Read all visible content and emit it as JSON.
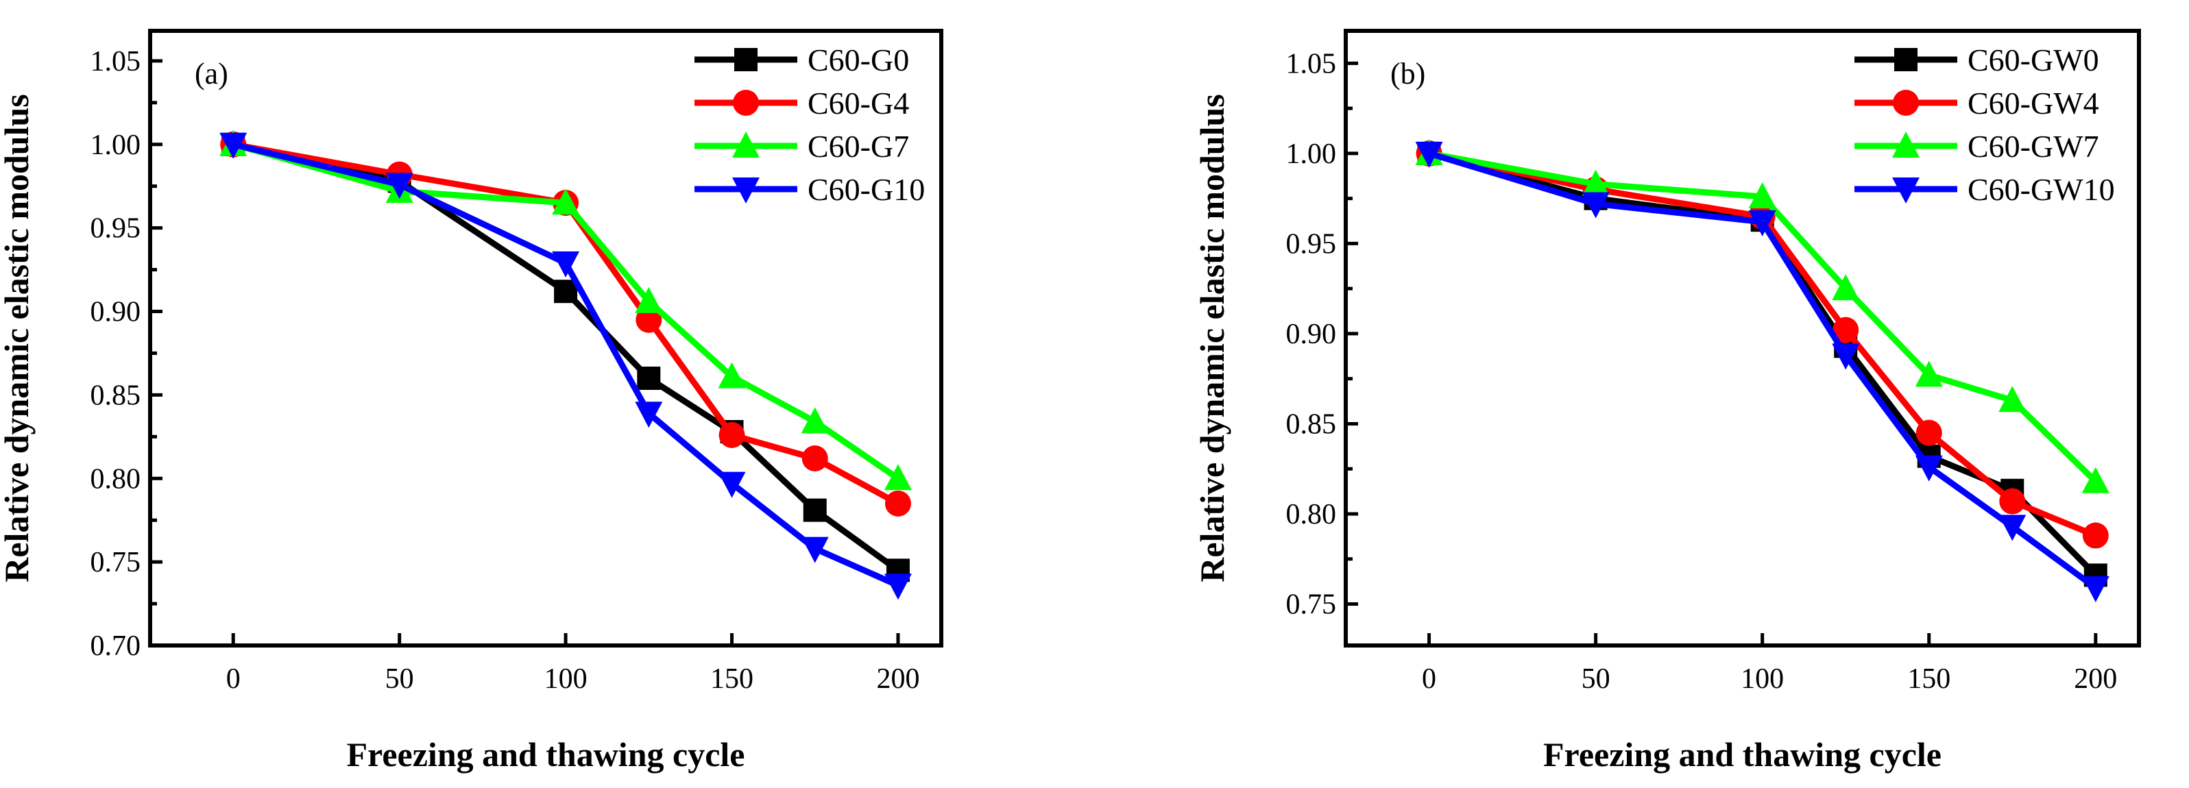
{
  "chart_data": [
    {
      "type": "line",
      "panel_label": "(a)",
      "xlabel": "Freezing and thawing cycle",
      "ylabel": "Relative dynamic elastic modulus",
      "x": [
        0,
        50,
        100,
        125,
        150,
        175,
        200
      ],
      "xlim": [
        -25,
        213
      ],
      "ylim": [
        0.7,
        1.068
      ],
      "xticks": [
        0,
        50,
        100,
        150,
        200
      ],
      "yticks": [
        0.7,
        0.75,
        0.8,
        0.85,
        0.9,
        0.95,
        1.0,
        1.05
      ],
      "xtick_labels": [
        "0",
        "50",
        "100",
        "150",
        "200"
      ],
      "ytick_labels": [
        "0.70",
        "0.75",
        "0.80",
        "0.85",
        "0.90",
        "0.95",
        "1.00",
        "1.05"
      ],
      "legend_position": "top-right",
      "grid": false,
      "series": [
        {
          "name": "C60-G0",
          "color": "#000000",
          "marker": "square",
          "values": [
            1.0,
            0.978,
            0.912,
            0.86,
            0.828,
            0.781,
            0.745
          ]
        },
        {
          "name": "C60-G4",
          "color": "#ff0000",
          "marker": "circle",
          "values": [
            1.0,
            0.982,
            0.965,
            0.895,
            0.826,
            0.812,
            0.785
          ]
        },
        {
          "name": "C60-G7",
          "color": "#00ff00",
          "marker": "triangle-up",
          "values": [
            1.0,
            0.972,
            0.965,
            0.906,
            0.861,
            0.834,
            0.8
          ]
        },
        {
          "name": "C60-G10",
          "color": "#0000ff",
          "marker": "triangle-down",
          "values": [
            1.0,
            0.976,
            0.929,
            0.839,
            0.797,
            0.758,
            0.736
          ]
        }
      ]
    },
    {
      "type": "line",
      "panel_label": "(b)",
      "xlabel": "Freezing and thawing cycle",
      "ylabel": "Relative dynamic elastic modulus",
      "x": [
        0,
        50,
        100,
        125,
        150,
        175,
        200
      ],
      "xlim": [
        -25,
        213
      ],
      "ylim": [
        0.727,
        1.068
      ],
      "xticks": [
        0,
        50,
        100,
        150,
        200
      ],
      "yticks": [
        0.75,
        0.8,
        0.85,
        0.9,
        0.95,
        1.0,
        1.05
      ],
      "xtick_labels": [
        "0",
        "50",
        "100",
        "150",
        "200"
      ],
      "ytick_labels": [
        "0.75",
        "0.80",
        "0.85",
        "0.90",
        "0.95",
        "1.00",
        "1.05"
      ],
      "legend_position": "top-right",
      "grid": false,
      "series": [
        {
          "name": "C60-GW0",
          "color": "#000000",
          "marker": "square",
          "values": [
            1.0,
            0.975,
            0.963,
            0.893,
            0.832,
            0.813,
            0.766
          ]
        },
        {
          "name": "C60-GW4",
          "color": "#ff0000",
          "marker": "circle",
          "values": [
            1.0,
            0.98,
            0.965,
            0.902,
            0.845,
            0.807,
            0.788
          ]
        },
        {
          "name": "C60-GW7",
          "color": "#00ff00",
          "marker": "triangle-up",
          "values": [
            1.0,
            0.983,
            0.976,
            0.925,
            0.877,
            0.863,
            0.818
          ]
        },
        {
          "name": "C60-GW10",
          "color": "#0000ff",
          "marker": "triangle-down",
          "values": [
            1.0,
            0.972,
            0.962,
            0.888,
            0.826,
            0.793,
            0.759
          ]
        }
      ]
    }
  ]
}
